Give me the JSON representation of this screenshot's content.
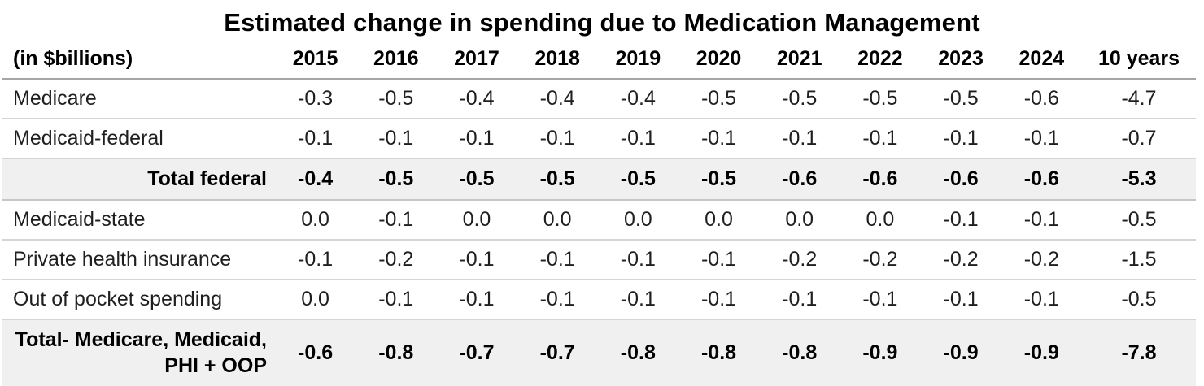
{
  "title": "Estimated change in spending due to Medication Management",
  "chart_data": {
    "type": "table",
    "title": "Estimated change in spending due to Medication Management",
    "unit_label": "(in $billions)",
    "columns": [
      "2015",
      "2016",
      "2017",
      "2018",
      "2019",
      "2020",
      "2021",
      "2022",
      "2023",
      "2024",
      "10 years"
    ],
    "rows": [
      {
        "label": "Medicare",
        "style": "normal",
        "values": [
          "-0.3",
          "-0.5",
          "-0.4",
          "-0.4",
          "-0.4",
          "-0.5",
          "-0.5",
          "-0.5",
          "-0.5",
          "-0.6",
          "-4.7"
        ]
      },
      {
        "label": "Medicaid-federal",
        "style": "normal",
        "values": [
          "-0.1",
          "-0.1",
          "-0.1",
          "-0.1",
          "-0.1",
          "-0.1",
          "-0.1",
          "-0.1",
          "-0.1",
          "-0.1",
          "-0.7"
        ]
      },
      {
        "label": "Total federal",
        "style": "total",
        "values": [
          "-0.4",
          "-0.5",
          "-0.5",
          "-0.5",
          "-0.5",
          "-0.5",
          "-0.6",
          "-0.6",
          "-0.6",
          "-0.6",
          "-5.3"
        ]
      },
      {
        "label": "Medicaid-state",
        "style": "normal",
        "values": [
          "0.0",
          "-0.1",
          "0.0",
          "0.0",
          "0.0",
          "0.0",
          "0.0",
          "0.0",
          "-0.1",
          "-0.1",
          "-0.5"
        ]
      },
      {
        "label": "Private health insurance",
        "style": "normal",
        "values": [
          "-0.1",
          "-0.2",
          "-0.1",
          "-0.1",
          "-0.1",
          "-0.1",
          "-0.2",
          "-0.2",
          "-0.2",
          "-0.2",
          "-1.5"
        ]
      },
      {
        "label": "Out of pocket spending",
        "style": "normal",
        "values": [
          "0.0",
          "-0.1",
          "-0.1",
          "-0.1",
          "-0.1",
          "-0.1",
          "-0.1",
          "-0.1",
          "-0.1",
          "-0.1",
          "-0.5"
        ]
      },
      {
        "label": "Total- Medicare, Medicaid, PHI + OOP",
        "style": "total",
        "values": [
          "-0.6",
          "-0.8",
          "-0.7",
          "-0.7",
          "-0.8",
          "-0.8",
          "-0.8",
          "-0.9",
          "-0.9",
          "-0.9",
          "-7.8"
        ]
      }
    ],
    "layout_hints": {
      "grid": "horizontal-dividers-only",
      "total_rows_shaded": true
    }
  },
  "colors": {
    "total_row_bg": "#f0f0f0",
    "header_divider": "#a6a6a6",
    "row_divider": "#d4d4d4",
    "title_text": "#000000",
    "body_text": "#1f1f1f"
  }
}
